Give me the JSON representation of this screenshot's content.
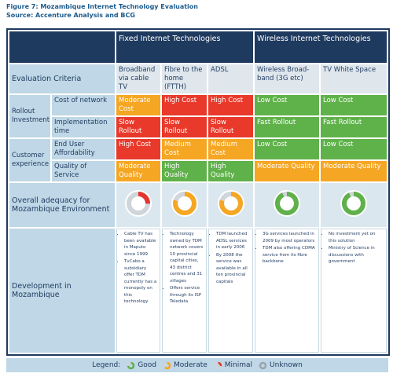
{
  "header": {
    "title": "Figure 7: Mozambique Internet Technology Evaluation",
    "source": "Source: Accenture Analysis and BCG"
  },
  "table": {
    "groups": [
      "Fixed Internet Technologies",
      "Wireless Internet Technologies"
    ],
    "criteria_header": "Evaluation Criteria",
    "technologies": [
      "Broadband via cable TV",
      "Fibre to the home (FTTH)",
      "ADSL",
      "Wireless Broad-band (3G etc)",
      "TV White Space"
    ],
    "row_groups": [
      "Rollout Investment",
      "Customer experience"
    ],
    "rows": [
      {
        "criterion": "Cost of network",
        "cells": [
          "Moderate Cost",
          "High Cost",
          "High Cost",
          "Low Cost",
          "Low Cost"
        ]
      },
      {
        "criterion": "Implementation time",
        "cells": [
          "Slow Rollout",
          "Slow Rollout",
          "Slow Rollout",
          "Fast Rollout",
          "Fast Rollout"
        ]
      },
      {
        "criterion": "End User Affordability",
        "cells": [
          "High Cost",
          "Medium Cost",
          "Medium Cost",
          "Low Cost",
          "Low Cost"
        ]
      },
      {
        "criterion": "Quality of Service",
        "cells": [
          "Moderate Quality",
          "High Quality",
          "High Quality",
          "Moderate Quality",
          "Moderate Quality"
        ]
      }
    ],
    "adequacy_label": "Overall adequacy for Mozambique Environment",
    "development_label": "Development in Mozambique",
    "development": [
      [
        "Cable TV has been available in Maputo since 1999",
        "TvCabo a subsidiary offer TDM currently has a monopoly on this technology"
      ],
      [
        "Technology owned by TDM network covers 10 provincial capital cities, 43 district centres and 31 villages",
        "Offers service through its ISP Teledata"
      ],
      [
        "TDM launched ADSL services in early 2006",
        "By 2008 the service was available in all ten provincial capitals"
      ],
      [
        "3G services launched in 2009 by most operators",
        "TDM also offering CDMA service from its fibre backbone"
      ],
      [
        "No investment yet on this solution",
        "Ministry of Science in discussions with government"
      ]
    ]
  },
  "legend": {
    "label": "Legend:",
    "items": [
      "Good",
      "Moderate",
      "Minimal",
      "Unknown"
    ]
  }
}
